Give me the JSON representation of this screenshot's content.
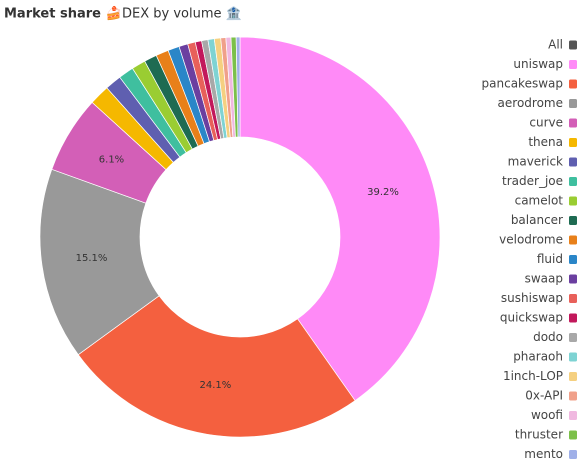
{
  "chart_data": {
    "type": "donut",
    "title": "Market share 🍰",
    "subtitle": "DEX by volume 🏦",
    "legend_all": "All",
    "legend_all_color": "#555555",
    "categories": [
      "uniswap",
      "pancakeswap",
      "aerodrome",
      "curve",
      "thena",
      "maverick",
      "trader_joe",
      "camelot",
      "balancer",
      "velodrome",
      "fluid",
      "swaap",
      "sushiswap",
      "quickswap",
      "dodo",
      "pharaoh",
      "1inch-LOP",
      "0x-API",
      "woofi",
      "thruster",
      "mento"
    ],
    "values": [
      39.2,
      24.1,
      15.1,
      6.1,
      1.6,
      1.3,
      1.2,
      1.1,
      1.0,
      1.0,
      0.9,
      0.7,
      0.6,
      0.5,
      0.5,
      0.5,
      0.5,
      0.4,
      0.4,
      0.4,
      0.3
    ],
    "value_labels": [
      "39.2%",
      "24.1%",
      "15.1%",
      "6.1%",
      null,
      null,
      null,
      null,
      null,
      null,
      null,
      null,
      null,
      null,
      null,
      null,
      null,
      null,
      null,
      null,
      null
    ],
    "colors": [
      "#ff8af7",
      "#f4603f",
      "#999999",
      "#d35fb7",
      "#f5b800",
      "#5f5fb0",
      "#3fbf9f",
      "#9acd32",
      "#1e6b52",
      "#e8801a",
      "#2a86c8",
      "#6b3fa0",
      "#e8605a",
      "#c2185b",
      "#a8a8a8",
      "#7ed3d3",
      "#f5d080",
      "#f0a08a",
      "#f0b8e0",
      "#7cc04a",
      "#a0b0e8"
    ]
  }
}
